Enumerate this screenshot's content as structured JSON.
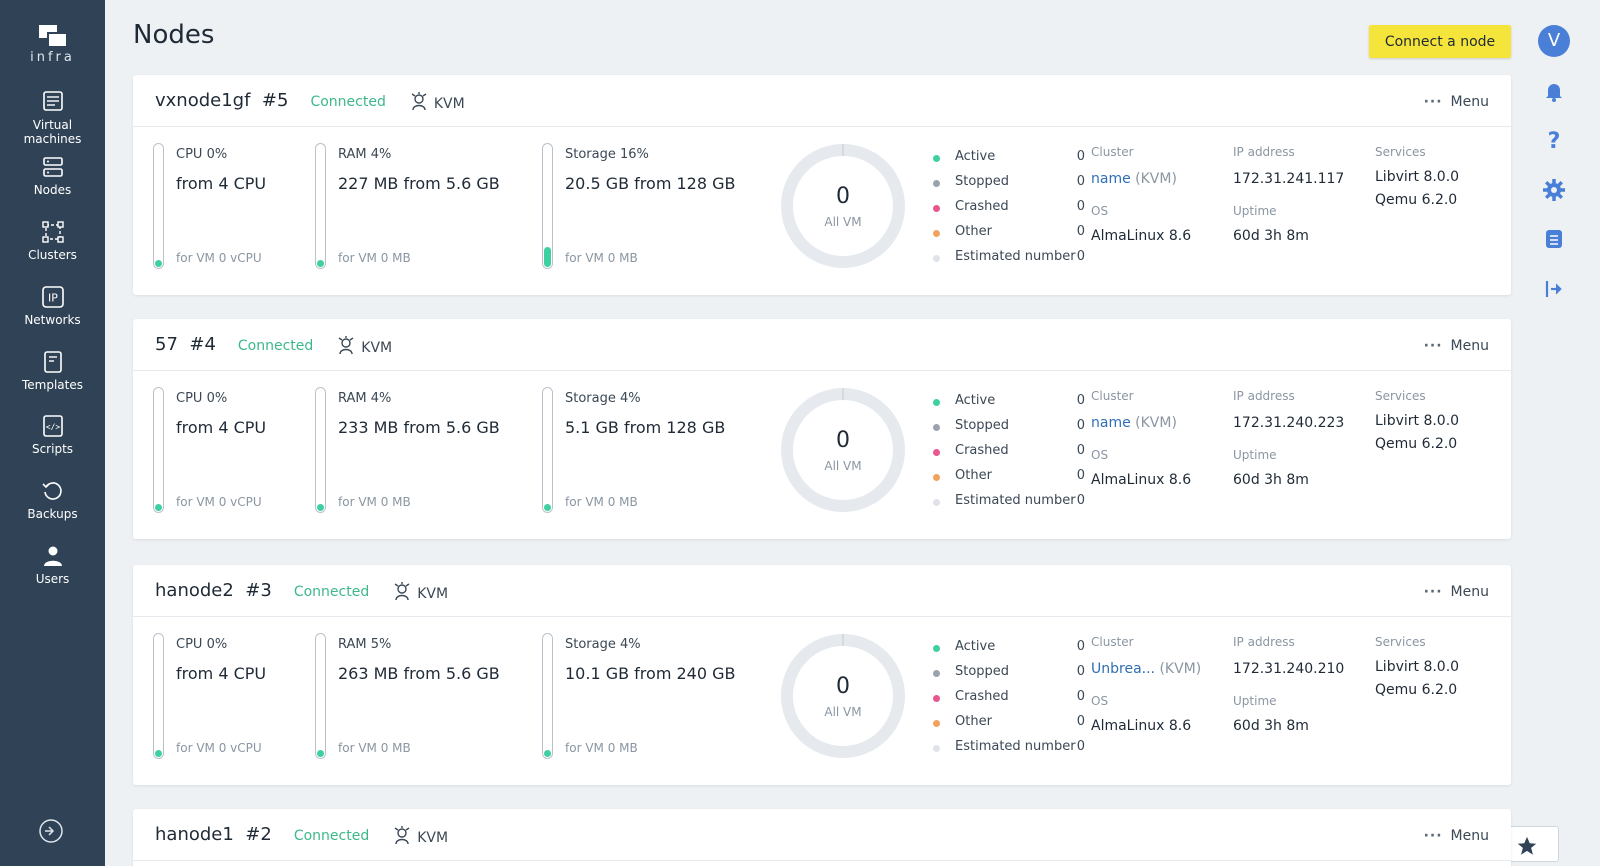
{
  "app": {
    "logo_text": "infra"
  },
  "sidebar": {
    "items": [
      {
        "key": "vm",
        "label_line1": "Virtual",
        "label_line2": "machines",
        "icon": "virtual-machines-icon"
      },
      {
        "key": "nodes",
        "label_line1": "Nodes",
        "label_line2": "",
        "icon": "nodes-icon"
      },
      {
        "key": "clusters",
        "label_line1": "Clusters",
        "label_line2": "",
        "icon": "clusters-icon"
      },
      {
        "key": "networks",
        "label_line1": "Networks",
        "label_line2": "",
        "icon": "networks-icon"
      },
      {
        "key": "templates",
        "label_line1": "Templates",
        "label_line2": "",
        "icon": "templates-icon"
      },
      {
        "key": "scripts",
        "label_line1": "Scripts",
        "label_line2": "",
        "icon": "scripts-icon"
      },
      {
        "key": "backups",
        "label_line1": "Backups",
        "label_line2": "",
        "icon": "backups-icon"
      },
      {
        "key": "users",
        "label_line1": "Users",
        "label_line2": "",
        "icon": "users-icon"
      }
    ]
  },
  "header": {
    "title": "Nodes",
    "connect_label": "Connect a node"
  },
  "user": {
    "initial": "V"
  },
  "colors": {
    "sidebar": "#2f4256",
    "connected": "#3db88a",
    "fill": "#3ed0a0",
    "active": "#3ed0a0",
    "stopped": "#9aa3ad",
    "crashed": "#e8578e",
    "other": "#f2a25c",
    "estimated": "#dfe3e8",
    "button": "#f5e53a"
  },
  "legend_labels": {
    "active": "Active",
    "stopped": "Stopped",
    "crashed": "Crashed",
    "other": "Other",
    "estimated": "Estimated number"
  },
  "info_labels": {
    "cluster": "Cluster",
    "os": "OS",
    "ip": "IP address",
    "uptime": "Uptime",
    "services": "Services",
    "all_vm": "All VM",
    "menu": "Menu"
  },
  "nodes": [
    {
      "name": "vxnode1gf",
      "number": "#5",
      "status": "Connected",
      "type": "KVM",
      "cpu": {
        "title": "CPU 0%",
        "main": "from 4 CPU",
        "sub": "for VM 0 vCPU",
        "percent": 0
      },
      "ram": {
        "title": "RAM 4%",
        "main": "227 MB from 5.6 GB",
        "sub": "for VM 0 MB",
        "percent": 4
      },
      "storage": {
        "title": "Storage 16%",
        "main": "20.5 GB from 128 GB",
        "sub": "for VM 0 MB",
        "percent": 16
      },
      "vm_total": "0",
      "counts": {
        "active": "0",
        "stopped": "0",
        "crashed": "0",
        "other": "0",
        "estimated": "0"
      },
      "cluster_name": "name",
      "cluster_type": "(KVM)",
      "os": "AlmaLinux 8.6",
      "ip": "172.31.241.117",
      "uptime": "60d 3h 8m",
      "libvirt": "Libvirt  8.0.0",
      "qemu": "Qemu  6.2.0"
    },
    {
      "name": "57",
      "number": "#4",
      "status": "Connected",
      "type": "KVM",
      "cpu": {
        "title": "CPU 0%",
        "main": "from 4 CPU",
        "sub": "for VM 0 vCPU",
        "percent": 0
      },
      "ram": {
        "title": "RAM 4%",
        "main": "233 MB from 5.6 GB",
        "sub": "for VM 0 MB",
        "percent": 4
      },
      "storage": {
        "title": "Storage 4%",
        "main": "5.1 GB from 128 GB",
        "sub": "for VM 0 MB",
        "percent": 4
      },
      "vm_total": "0",
      "counts": {
        "active": "0",
        "stopped": "0",
        "crashed": "0",
        "other": "0",
        "estimated": "0"
      },
      "cluster_name": "name",
      "cluster_type": "(KVM)",
      "os": "AlmaLinux 8.6",
      "ip": "172.31.240.223",
      "uptime": "60d 3h 8m",
      "libvirt": "Libvirt  8.0.0",
      "qemu": "Qemu  6.2.0"
    },
    {
      "name": "hanode2",
      "number": "#3",
      "status": "Connected",
      "type": "KVM",
      "cpu": {
        "title": "CPU 0%",
        "main": "from 4 CPU",
        "sub": "for VM 0 vCPU",
        "percent": 0
      },
      "ram": {
        "title": "RAM 5%",
        "main": "263 MB from 5.6 GB",
        "sub": "for VM 0 MB",
        "percent": 5
      },
      "storage": {
        "title": "Storage 4%",
        "main": "10.1 GB from 240 GB",
        "sub": "for VM 0 MB",
        "percent": 4
      },
      "vm_total": "0",
      "counts": {
        "active": "0",
        "stopped": "0",
        "crashed": "0",
        "other": "0",
        "estimated": "0"
      },
      "cluster_name": "Unbrea...",
      "cluster_type": "(KVM)",
      "os": "AlmaLinux 8.6",
      "ip": "172.31.240.210",
      "uptime": "60d 3h 8m",
      "libvirt": "Libvirt  8.0.0",
      "qemu": "Qemu  6.2.0"
    },
    {
      "name": "hanode1",
      "number": "#2",
      "status": "Connected",
      "type": "KVM"
    }
  ]
}
